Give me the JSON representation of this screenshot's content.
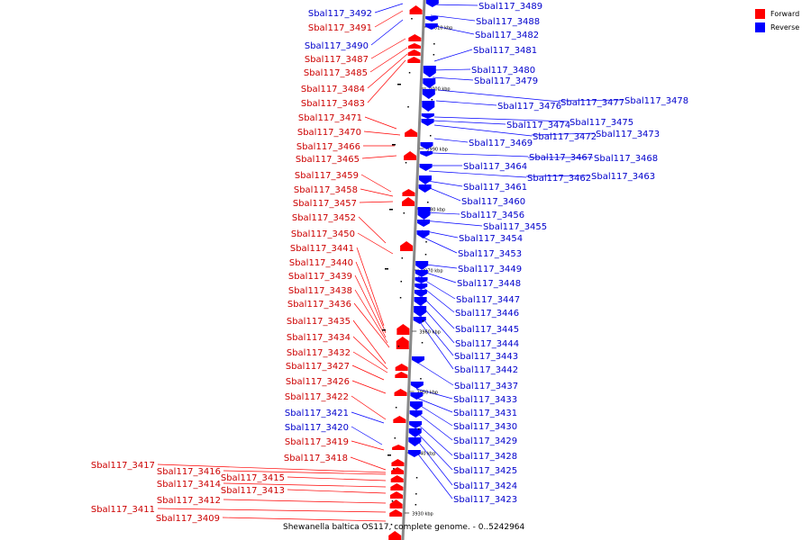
{
  "caption": "Shewanella baltica OS117, complete genome. - 0..5242964",
  "legend": [
    {
      "label": "Forward",
      "color": "#ff0000"
    },
    {
      "label": "Reverse",
      "color": "#0000ff"
    }
  ],
  "colors": {
    "forward": "#ff0000",
    "reverse": "#0000ff",
    "axis": "#888888"
  },
  "ticks": [
    "4010 kbp",
    "4000 kbp",
    "3990 kbp",
    "3980 kbp",
    "3970 kbp",
    "3960 kbp",
    "3950 kbp",
    "3940 kbp",
    "3930 kbp"
  ],
  "left_labels": [
    {
      "text": "Sbal117_3492",
      "color": "blue"
    },
    {
      "text": "Sbal117_3491",
      "color": "red"
    },
    {
      "text": "Sbal117_3490",
      "color": "blue"
    },
    {
      "text": "Sbal117_3487",
      "color": "red"
    },
    {
      "text": "Sbal117_3485",
      "color": "red"
    },
    {
      "text": "Sbal117_3484",
      "color": "red"
    },
    {
      "text": "Sbal117_3483",
      "color": "red"
    },
    {
      "text": "Sbal117_3471",
      "color": "red"
    },
    {
      "text": "Sbal117_3470",
      "color": "red"
    },
    {
      "text": "Sbal117_3466",
      "color": "red"
    },
    {
      "text": "Sbal117_3465",
      "color": "red"
    },
    {
      "text": "Sbal117_3459",
      "color": "red"
    },
    {
      "text": "Sbal117_3458",
      "color": "red"
    },
    {
      "text": "Sbal117_3457",
      "color": "red"
    },
    {
      "text": "Sbal117_3452",
      "color": "red"
    },
    {
      "text": "Sbal117_3450",
      "color": "red"
    },
    {
      "text": "Sbal117_3441",
      "color": "red"
    },
    {
      "text": "Sbal117_3440",
      "color": "red"
    },
    {
      "text": "Sbal117_3439",
      "color": "red"
    },
    {
      "text": "Sbal117_3438",
      "color": "red"
    },
    {
      "text": "Sbal117_3436",
      "color": "red"
    },
    {
      "text": "Sbal117_3435",
      "color": "red"
    },
    {
      "text": "Sbal117_3434",
      "color": "red"
    },
    {
      "text": "Sbal117_3432",
      "color": "red"
    },
    {
      "text": "Sbal117_3427",
      "color": "red"
    },
    {
      "text": "Sbal117_3426",
      "color": "red"
    },
    {
      "text": "Sbal117_3422",
      "color": "red"
    },
    {
      "text": "Sbal117_3421",
      "color": "blue"
    },
    {
      "text": "Sbal117_3420",
      "color": "blue"
    },
    {
      "text": "Sbal117_3419",
      "color": "red"
    },
    {
      "text": "Sbal117_3418",
      "color": "red"
    },
    {
      "text": "Sbal117_3417",
      "color": "red"
    },
    {
      "text": "Sbal117_3416",
      "color": "red"
    },
    {
      "text": "Sbal117_3415",
      "color": "red"
    },
    {
      "text": "Sbal117_3414",
      "color": "red"
    },
    {
      "text": "Sbal117_3413",
      "color": "red"
    },
    {
      "text": "Sbal117_3412",
      "color": "red"
    },
    {
      "text": "Sbal117_3411",
      "color": "red"
    },
    {
      "text": "Sbal117_3409",
      "color": "red"
    }
  ],
  "right_labels": [
    {
      "text": "Sbal117_3489",
      "color": "blue"
    },
    {
      "text": "Sbal117_3488",
      "color": "blue"
    },
    {
      "text": "Sbal117_3482",
      "color": "blue"
    },
    {
      "text": "Sbal117_3481",
      "color": "blue"
    },
    {
      "text": "Sbal117_3480",
      "color": "blue"
    },
    {
      "text": "Sbal117_3479",
      "color": "blue"
    },
    {
      "text": "Sbal117_3477",
      "color": "blue"
    },
    {
      "text": "Sbal117_3478",
      "color": "blue"
    },
    {
      "text": "Sbal117_3476",
      "color": "blue"
    },
    {
      "text": "Sbal117_3475",
      "color": "blue"
    },
    {
      "text": "Sbal117_3474",
      "color": "blue"
    },
    {
      "text": "Sbal117_3472",
      "color": "blue"
    },
    {
      "text": "Sbal117_3473",
      "color": "blue"
    },
    {
      "text": "Sbal117_3469",
      "color": "blue"
    },
    {
      "text": "Sbal117_3467",
      "color": "blue"
    },
    {
      "text": "Sbal117_3468",
      "color": "blue"
    },
    {
      "text": "Sbal117_3464",
      "color": "blue"
    },
    {
      "text": "Sbal117_3462",
      "color": "blue"
    },
    {
      "text": "Sbal117_3463",
      "color": "blue"
    },
    {
      "text": "Sbal117_3461",
      "color": "blue"
    },
    {
      "text": "Sbal117_3460",
      "color": "blue"
    },
    {
      "text": "Sbal117_3456",
      "color": "blue"
    },
    {
      "text": "Sbal117_3455",
      "color": "blue"
    },
    {
      "text": "Sbal117_3454",
      "color": "blue"
    },
    {
      "text": "Sbal117_3453",
      "color": "blue"
    },
    {
      "text": "Sbal117_3449",
      "color": "blue"
    },
    {
      "text": "Sbal117_3448",
      "color": "blue"
    },
    {
      "text": "Sbal117_3447",
      "color": "blue"
    },
    {
      "text": "Sbal117_3446",
      "color": "blue"
    },
    {
      "text": "Sbal117_3445",
      "color": "blue"
    },
    {
      "text": "Sbal117_3444",
      "color": "blue"
    },
    {
      "text": "Sbal117_3443",
      "color": "blue"
    },
    {
      "text": "Sbal117_3442",
      "color": "blue"
    },
    {
      "text": "Sbal117_3437",
      "color": "blue"
    },
    {
      "text": "Sbal117_3433",
      "color": "blue"
    },
    {
      "text": "Sbal117_3431",
      "color": "blue"
    },
    {
      "text": "Sbal117_3430",
      "color": "blue"
    },
    {
      "text": "Sbal117_3429",
      "color": "blue"
    },
    {
      "text": "Sbal117_3428",
      "color": "blue"
    },
    {
      "text": "Sbal117_3425",
      "color": "blue"
    },
    {
      "text": "Sbal117_3424",
      "color": "blue"
    },
    {
      "text": "Sbal117_3423",
      "color": "blue"
    }
  ]
}
